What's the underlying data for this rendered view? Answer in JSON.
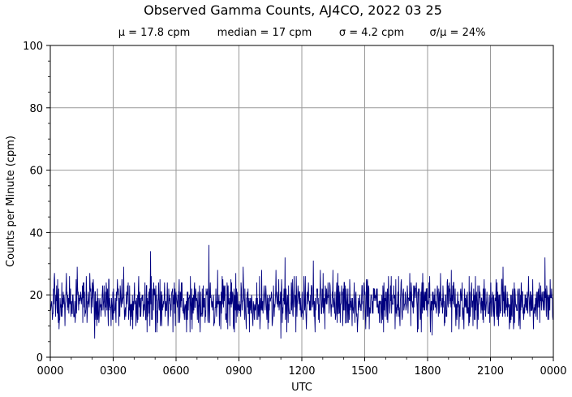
{
  "chart_data": {
    "type": "line",
    "title": "Observed Gamma Counts, AJ4CO, 2022 03 25",
    "stats": [
      "μ = 17.8 cpm",
      "median = 17 cpm",
      "σ = 4.2 cpm",
      "σ/μ = 24%"
    ],
    "xlabel": "UTC",
    "ylabel": "Counts per Minute (cpm)",
    "x_ticks": [
      "0000",
      "0300",
      "0600",
      "0900",
      "1200",
      "1500",
      "1800",
      "2100",
      "0000"
    ],
    "y_ticks": [
      "0",
      "20",
      "40",
      "60",
      "80",
      "100"
    ],
    "xlim_minutes": [
      0,
      1440
    ],
    "ylim": [
      0,
      100
    ],
    "grid": true,
    "line_color": "#00007f",
    "series": [
      {
        "mean": 17.8,
        "median": 17,
        "std": 4.2,
        "sample_interval_minutes": 1,
        "points_count": 1440,
        "notable_peaks": [
          {
            "time": "0447",
            "value": 34
          },
          {
            "time": "0734",
            "value": 36
          },
          {
            "time": "1112",
            "value": 32
          },
          {
            "time": "1233",
            "value": 31
          },
          {
            "time": "2336",
            "value": 32
          }
        ],
        "notable_lows": [
          {
            "time": "0207",
            "value": 6
          },
          {
            "time": "1100",
            "value": 6
          },
          {
            "time": "1813",
            "value": 7
          }
        ]
      }
    ]
  }
}
